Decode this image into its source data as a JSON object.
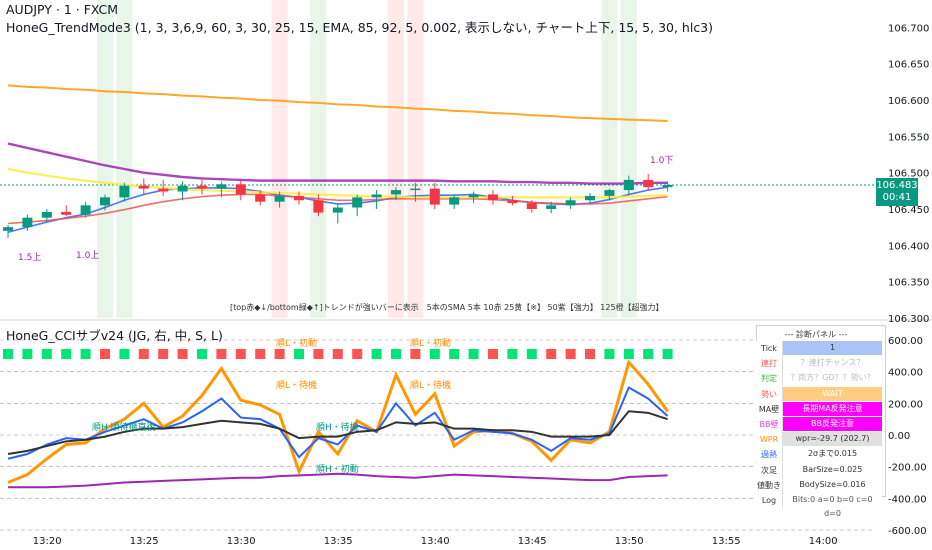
{
  "header": {
    "symbol_line": "AUDJPY · 1 · FXCM",
    "indicator_line": "HoneG_TrendMode3 (1, 3, 3,6,9, 60, 3, 30, 25, 15, EMA, 85, 92, 5, 0.002, 表示しない, チャート上下, 15, 5, 30, hlc3)",
    "sub_indicator_line": "HoneG_CCIサブv24 (JG, 右, 中, S, L)"
  },
  "price_axis": {
    "ticks": [
      "106.700",
      "106.650",
      "106.600",
      "106.550",
      "106.500",
      "106.450",
      "106.400",
      "106.350",
      "106.300"
    ],
    "current_price": "106.483",
    "countdown": "00:41"
  },
  "sub_axis": {
    "ticks": [
      "600.00",
      "400.00",
      "200.00",
      "0.00",
      "-200.00",
      "-400.00",
      "-600.00"
    ]
  },
  "time_axis": {
    "ticks": [
      "13:20",
      "13:25",
      "13:30",
      "13:35",
      "13:40",
      "13:45",
      "13:50",
      "13:55",
      "14:00"
    ]
  },
  "annotations": {
    "note": "[top赤◆↓/bottom緑◆↑]トレンドが強いバーに表示　5本のSMA 5本 10赤 25黄【※】 50紫【強力】 125橙【超強力】",
    "label_15_up": "1.5上",
    "label_10_up": "1.0上",
    "label_10_down": "1.0下",
    "sub_tags": [
      {
        "text": "順L・初動",
        "color": "#ff8c00"
      },
      {
        "text": "順L・初動",
        "color": "#ff8c00"
      },
      {
        "text": "順L・待機",
        "color": "#ff8c00"
      },
      {
        "text": "順L・待機",
        "color": "#ff8c00"
      },
      {
        "text": "順H 順待機直後",
        "color": "#009688"
      },
      {
        "text": "順H・待機",
        "color": "#009688"
      },
      {
        "text": "順H・初動",
        "color": "#009688"
      }
    ]
  },
  "diagnostic_panel": {
    "title": "--- 診断パネル ---",
    "rows": [
      {
        "label": "Tick",
        "value": "1",
        "label_bg": "#ffffff",
        "value_bg": "#a9c4f5",
        "label_color": "#333333",
        "value_color": "#333333"
      },
      {
        "label": "連打",
        "value": "？連打チャンス？",
        "label_bg": "#ffffff",
        "value_bg": "#ffffff",
        "label_color": "#ff5252",
        "value_color": "#bdbdbd"
      },
      {
        "label": "判定",
        "value": "？両方？GD？？勢い？",
        "label_bg": "#ffffff",
        "value_bg": "#ffffff",
        "label_color": "#4caf50",
        "value_color": "#bdbdbd"
      },
      {
        "label": "勢い",
        "value": "WAIT",
        "label_bg": "#ffffff",
        "value_bg": "#ffcc80",
        "label_color": "#ff5252",
        "value_color": "#ffffff"
      },
      {
        "label": "MA壁",
        "value": "長期MA反発注意",
        "label_bg": "#ffffff",
        "value_bg": "#ff00ff",
        "label_color": "#333333",
        "value_color": "#ffffff"
      },
      {
        "label": "BB壁",
        "value": "BB反発注意",
        "label_bg": "#ffffff",
        "value_bg": "#ff00ff",
        "label_color": "#e040fb",
        "value_color": "#ffffff"
      },
      {
        "label": "WPR注",
        "value": "wpr=-29.7 (202.7)",
        "label_bg": "#ffffff",
        "value_bg": "#e0e0e0",
        "label_color": "#ff8c00",
        "value_color": "#333333"
      },
      {
        "label": "過熱",
        "value": "2σまで0.015",
        "label_bg": "#ffffff",
        "value_bg": "#ffffff",
        "label_color": "#2962ff",
        "value_color": "#333333"
      },
      {
        "label": "次足",
        "value": "BarSize=0.025",
        "label_bg": "#ffffff",
        "value_bg": "#ffffff",
        "label_color": "#333333",
        "value_color": "#333333"
      },
      {
        "label": "値動き",
        "value": "BodySize=0.016",
        "label_bg": "#ffffff",
        "value_bg": "#ffffff",
        "label_color": "#333333",
        "value_color": "#333333"
      },
      {
        "label": "Log",
        "value": "Bits:0 a=0 b=0 c=0 d=0",
        "label_bg": "#ffffff",
        "value_bg": "#ffffff",
        "label_color": "#333333",
        "value_color": "#555555"
      }
    ]
  },
  "colors": {
    "bull": "#089981",
    "bear": "#f23645",
    "sma5": "#2962ff",
    "sma10": "#ef5350",
    "sma25": "#ffeb3b",
    "sma50": "#9c27b0",
    "sma125": "#ff9800",
    "cci_main": "#ff9800",
    "highlight_green": "#4caf50",
    "highlight_red": "#ff5252"
  },
  "chart_data": [
    {
      "type": "candlestick",
      "title": "AUDJPY · 1 · FXCM",
      "x": [
        "13:18",
        "13:19",
        "13:20",
        "13:21",
        "13:22",
        "13:23",
        "13:24",
        "13:25",
        "13:26",
        "13:27",
        "13:28",
        "13:29",
        "13:30",
        "13:31",
        "13:32",
        "13:33",
        "13:34",
        "13:35",
        "13:36",
        "13:37",
        "13:38",
        "13:39",
        "13:40",
        "13:41",
        "13:42",
        "13:43",
        "13:44",
        "13:45",
        "13:46",
        "13:47",
        "13:48",
        "13:49",
        "13:50",
        "13:51",
        "13:52"
      ],
      "ylim": [
        106.3,
        106.71
      ],
      "ohlc": [
        [
          106.42,
          106.428,
          106.41,
          106.425
        ],
        [
          106.425,
          106.442,
          106.42,
          106.438
        ],
        [
          106.438,
          106.45,
          106.432,
          106.446
        ],
        [
          106.446,
          106.455,
          106.44,
          106.442
        ],
        [
          106.442,
          106.46,
          106.438,
          106.455
        ],
        [
          106.455,
          106.47,
          106.448,
          106.466
        ],
        [
          106.466,
          106.486,
          106.46,
          106.482
        ],
        [
          106.482,
          106.492,
          106.47,
          106.478
        ],
        [
          106.478,
          106.49,
          106.468,
          106.474
        ],
        [
          106.474,
          106.488,
          106.462,
          106.482
        ],
        [
          106.482,
          106.49,
          106.47,
          106.478
        ],
        [
          106.478,
          106.488,
          106.466,
          106.484
        ],
        [
          106.484,
          106.49,
          106.462,
          106.47
        ],
        [
          106.47,
          106.476,
          106.455,
          106.46
        ],
        [
          106.46,
          106.474,
          106.452,
          106.468
        ],
        [
          106.468,
          106.474,
          106.456,
          106.462
        ],
        [
          106.462,
          106.47,
          106.44,
          106.445
        ],
        [
          106.445,
          106.458,
          106.43,
          106.452
        ],
        [
          106.452,
          106.47,
          106.44,
          106.466
        ],
        [
          106.466,
          106.476,
          106.45,
          106.47
        ],
        [
          106.47,
          106.48,
          106.462,
          106.476
        ],
        [
          106.476,
          106.486,
          106.46,
          106.478
        ],
        [
          106.478,
          106.486,
          106.45,
          106.456
        ],
        [
          106.456,
          106.47,
          106.45,
          106.466
        ],
        [
          106.466,
          106.474,
          106.458,
          106.47
        ],
        [
          106.47,
          106.476,
          106.456,
          106.462
        ],
        [
          106.462,
          106.468,
          106.455,
          106.458
        ],
        [
          106.458,
          106.462,
          106.445,
          106.45
        ],
        [
          106.45,
          106.46,
          106.444,
          106.455
        ],
        [
          106.455,
          106.466,
          106.45,
          106.462
        ],
        [
          106.462,
          106.472,
          106.456,
          106.468
        ],
        [
          106.468,
          106.478,
          106.462,
          106.476
        ],
        [
          106.476,
          106.496,
          106.47,
          106.49
        ],
        [
          106.49,
          106.498,
          106.476,
          106.48
        ],
        [
          106.48,
          106.488,
          106.474,
          106.483
        ]
      ],
      "series": [
        {
          "name": "SMA5",
          "values": [
            106.418,
            106.425,
            106.432,
            106.438,
            106.443,
            106.452,
            106.462,
            106.47,
            106.476,
            106.478,
            106.479,
            106.479,
            106.478,
            106.474,
            106.469,
            106.466,
            106.461,
            106.457,
            106.458,
            106.461,
            106.466,
            106.468,
            106.469,
            106.469,
            106.47,
            106.466,
            106.462,
            106.459,
            106.457,
            106.456,
            106.458,
            106.463,
            106.47,
            106.476,
            106.48
          ]
        },
        {
          "name": "SMA10",
          "values": [
            106.43,
            106.432,
            106.434,
            106.437,
            106.44,
            106.444,
            106.449,
            106.455,
            106.46,
            106.464,
            106.467,
            106.469,
            106.47,
            106.47,
            106.468,
            106.466,
            106.464,
            106.462,
            106.462,
            106.463,
            106.464,
            106.464,
            106.464,
            106.464,
            106.464,
            106.463,
            106.461,
            106.459,
            106.458,
            106.457,
            106.457,
            106.458,
            106.461,
            106.464,
            106.467
          ]
        },
        {
          "name": "SMA25",
          "values": [
            106.505,
            106.5,
            106.496,
            106.492,
            106.489,
            106.486,
            106.483,
            106.481,
            106.479,
            106.477,
            106.476,
            106.475,
            106.474,
            106.473,
            106.472,
            106.471,
            106.47,
            106.469,
            106.468,
            106.467,
            106.467,
            106.466,
            106.466,
            106.466,
            106.466,
            106.466,
            106.466,
            106.466,
            106.466,
            106.466,
            106.466,
            106.466,
            106.467,
            106.468,
            106.469
          ]
        },
        {
          "name": "SMA50",
          "values": [
            106.54,
            106.534,
            106.528,
            106.522,
            106.516,
            106.51,
            106.505,
            106.5,
            106.497,
            106.494,
            106.492,
            106.491,
            106.49,
            106.489,
            106.489,
            106.489,
            106.489,
            106.489,
            106.489,
            106.489,
            106.489,
            106.489,
            106.489,
            106.488,
            106.488,
            106.488,
            106.487,
            106.487,
            106.486,
            106.486,
            106.485,
            106.485,
            106.485,
            106.486,
            106.486
          ]
        },
        {
          "name": "SMA125",
          "values": [
            106.62,
            106.618,
            106.617,
            106.615,
            106.614,
            106.612,
            106.611,
            106.609,
            106.608,
            106.606,
            106.605,
            106.603,
            106.602,
            106.6,
            106.599,
            106.597,
            106.596,
            106.594,
            106.593,
            106.591,
            106.59,
            106.588,
            106.587,
            106.585,
            106.584,
            106.582,
            106.581,
            106.579,
            106.578,
            106.576,
            106.575,
            106.574,
            106.573,
            106.572,
            106.571
          ]
        }
      ]
    },
    {
      "type": "line",
      "title": "HoneG_CCIサブv24 (JG, 右, 中, S, L)",
      "x": [
        "13:18",
        "13:19",
        "13:20",
        "13:21",
        "13:22",
        "13:23",
        "13:24",
        "13:25",
        "13:26",
        "13:27",
        "13:28",
        "13:29",
        "13:30",
        "13:31",
        "13:32",
        "13:33",
        "13:34",
        "13:35",
        "13:36",
        "13:37",
        "13:38",
        "13:39",
        "13:40",
        "13:41",
        "13:42",
        "13:43",
        "13:44",
        "13:45",
        "13:46",
        "13:47",
        "13:48",
        "13:49",
        "13:50",
        "13:51",
        "13:52"
      ],
      "ylim": [
        -600,
        600
      ],
      "series": [
        {
          "name": "CCI",
          "values": [
            -300,
            -250,
            -150,
            -60,
            -50,
            40,
            100,
            200,
            50,
            120,
            250,
            420,
            220,
            190,
            130,
            -230,
            20,
            -120,
            90,
            20,
            380,
            130,
            260,
            -70,
            20,
            30,
            10,
            -40,
            -160,
            -30,
            -50,
            20,
            460,
            320,
            150
          ]
        },
        {
          "name": "CCI2",
          "values": [
            -150,
            -120,
            -60,
            -20,
            -30,
            20,
            60,
            100,
            40,
            80,
            150,
            230,
            110,
            100,
            40,
            -140,
            -20,
            -60,
            60,
            20,
            200,
            60,
            140,
            -30,
            30,
            20,
            10,
            -30,
            -100,
            -20,
            -30,
            10,
            300,
            230,
            120
          ]
        },
        {
          "name": "CCI3",
          "values": [
            -120,
            -100,
            -70,
            -40,
            -30,
            -10,
            20,
            40,
            40,
            50,
            70,
            90,
            80,
            70,
            40,
            -20,
            -10,
            -10,
            20,
            30,
            80,
            70,
            80,
            40,
            40,
            30,
            30,
            20,
            -10,
            -10,
            -10,
            0,
            150,
            140,
            100
          ]
        },
        {
          "name": "LongCCI",
          "values": [
            -330,
            -330,
            -330,
            -325,
            -320,
            -310,
            -300,
            -295,
            -290,
            -285,
            -280,
            -275,
            -270,
            -270,
            -260,
            -255,
            -250,
            -245,
            -250,
            -260,
            -265,
            -270,
            -260,
            -250,
            -255,
            -260,
            -265,
            -270,
            -275,
            -280,
            -285,
            -285,
            -265,
            -260,
            -255
          ]
        }
      ]
    }
  ]
}
